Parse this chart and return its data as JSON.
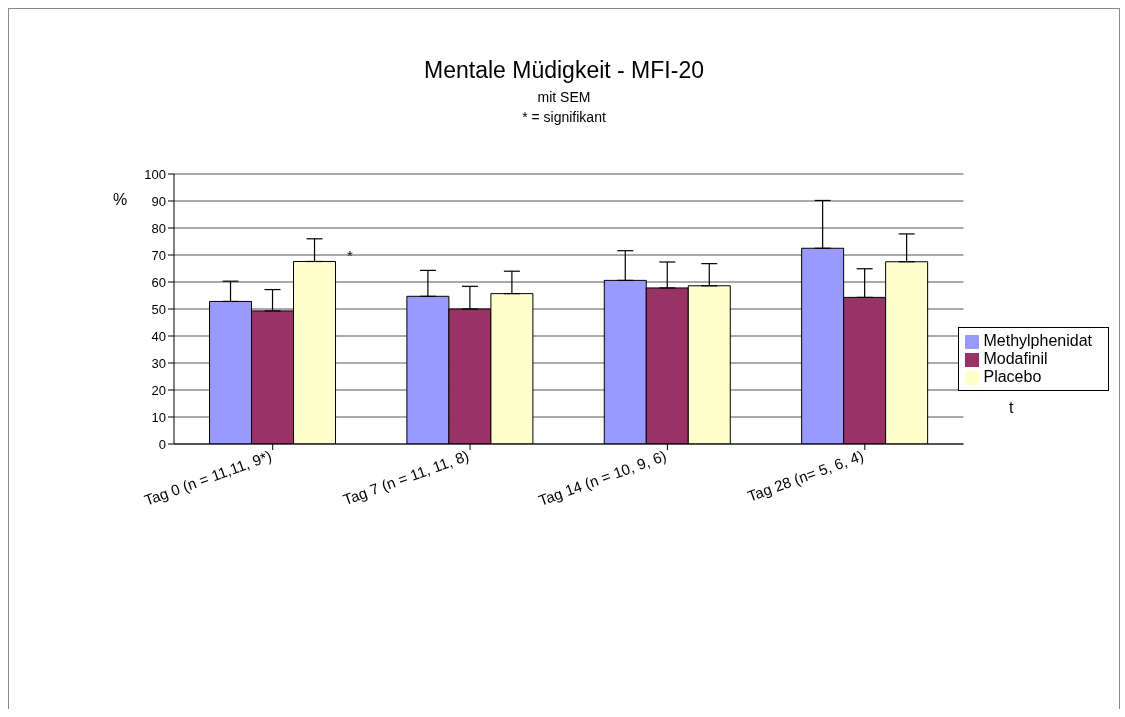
{
  "chart_data": {
    "type": "bar",
    "title": "Mentale Müdigkeit - MFI-20",
    "subtitle": "mit SEM",
    "xlabel": "t",
    "ylabel": "%",
    "categories": [
      "Tag 0 (n = 11,11, 9*)",
      "Tag 7 (n = 11, 11, 8)",
      "Tag 14 (n = 10, 9, 6)",
      "Tag 28 (n= 5, 6, 4)"
    ],
    "series": [
      {
        "name": "Methylphenidat",
        "color": "#9999ff",
        "values": [
          52.8,
          54.7,
          60.6,
          72.5
        ],
        "errors": [
          [
            52.8,
            60.3
          ],
          [
            54.7,
            64.3
          ],
          [
            60.6,
            71.6
          ],
          [
            72.5,
            90.2
          ]
        ]
      },
      {
        "name": "Modafinil",
        "color": "#993366",
        "values": [
          49.3,
          50.0,
          57.8,
          54.3
        ],
        "errors": [
          [
            49.3,
            57.2
          ],
          [
            50.0,
            58.4
          ],
          [
            57.8,
            67.4
          ],
          [
            54.3,
            64.9
          ]
        ]
      },
      {
        "name": "Placebo",
        "color": "#ffffcc",
        "values": [
          67.6,
          55.7,
          58.6,
          67.5
        ],
        "errors": [
          [
            67.6,
            76.0
          ],
          [
            55.7,
            64.0
          ],
          [
            58.6,
            66.8
          ],
          [
            67.5,
            77.8
          ]
        ]
      }
    ],
    "annotations": [
      "* = signifikant",
      "*"
    ],
    "ylim": [
      0,
      100
    ],
    "yticks": [
      0,
      10,
      20,
      30,
      40,
      50,
      60,
      70,
      80,
      90,
      100
    ],
    "grid": "y",
    "legend": "right"
  }
}
